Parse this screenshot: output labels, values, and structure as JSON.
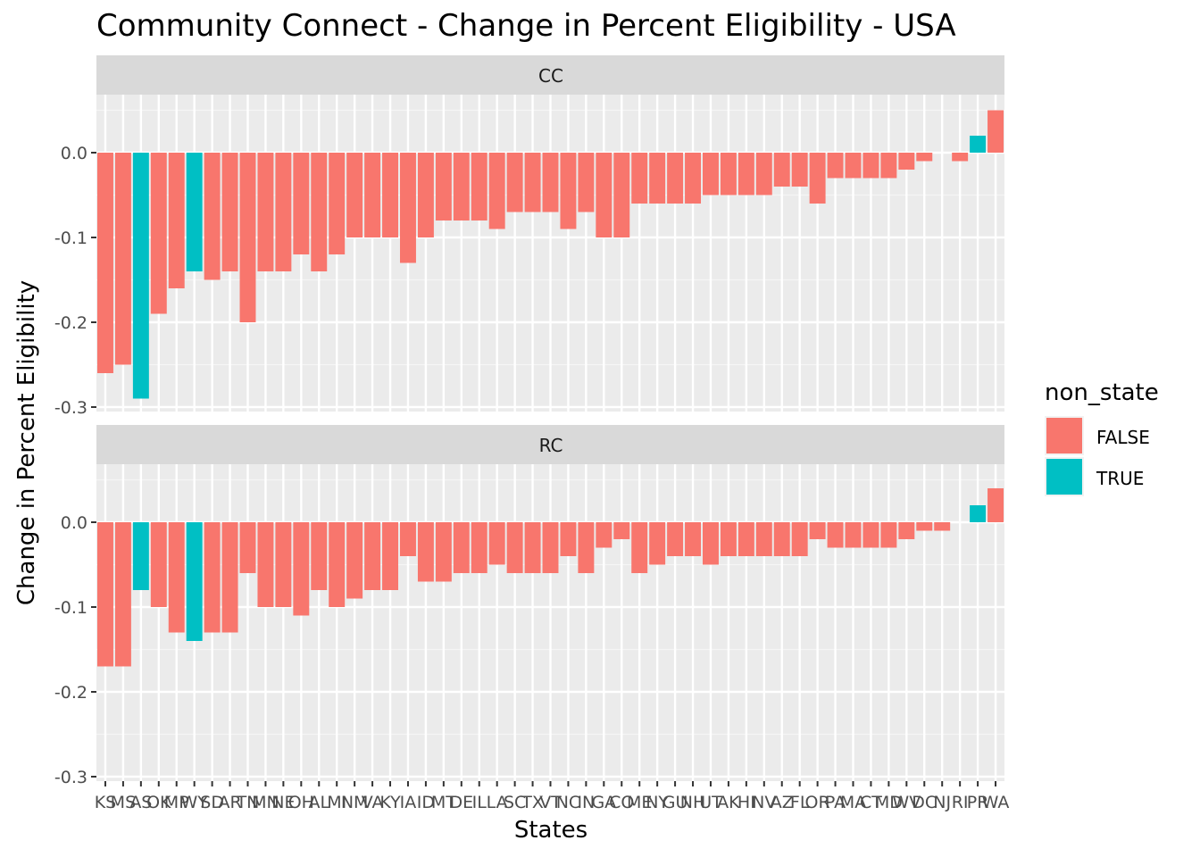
{
  "chart_data": {
    "type": "bar",
    "title": "Community Connect - Change in Percent Eligibility - USA",
    "xlabel": "States",
    "ylabel": "Change in Percent Eligibility",
    "ylim": [
      -0.3,
      0.05
    ],
    "yticks": [
      0.0,
      -0.1,
      -0.2,
      -0.3
    ],
    "ytick_labels": [
      "0.0",
      "-0.1",
      "-0.2",
      "-0.3"
    ],
    "grid": true,
    "legend": {
      "title": "non_state",
      "placement": "right",
      "entries": [
        {
          "label": "FALSE",
          "color": "#F8766D"
        },
        {
          "label": "TRUE",
          "color": "#00BFC4"
        }
      ]
    },
    "categories": [
      "KS",
      "MS",
      "AS",
      "OK",
      "MP",
      "WY",
      "SD",
      "AR",
      "TN",
      "MN",
      "NE",
      "OH",
      "AL",
      "MI",
      "NM",
      "VA",
      "KY",
      "IA",
      "ID",
      "MT",
      "DE",
      "IL",
      "LA",
      "SC",
      "TX",
      "VT",
      "NC",
      "IN",
      "GA",
      "CO",
      "ME",
      "NY",
      "GU",
      "NH",
      "UT",
      "AK",
      "HI",
      "NV",
      "AZ",
      "FL",
      "OR",
      "PA",
      "MA",
      "CT",
      "MD",
      "WV",
      "DC",
      "NJ",
      "RI",
      "PR",
      "WA"
    ],
    "non_state": [
      false,
      false,
      true,
      false,
      false,
      true,
      false,
      false,
      false,
      false,
      false,
      false,
      false,
      false,
      false,
      false,
      false,
      false,
      false,
      false,
      false,
      false,
      false,
      false,
      false,
      false,
      false,
      false,
      false,
      false,
      false,
      false,
      false,
      false,
      false,
      false,
      false,
      false,
      false,
      false,
      false,
      false,
      false,
      false,
      false,
      false,
      false,
      false,
      false,
      true,
      false
    ],
    "series": [
      {
        "name": "CC",
        "values": [
          -0.26,
          -0.25,
          -0.29,
          -0.19,
          -0.16,
          -0.14,
          -0.15,
          -0.14,
          -0.2,
          -0.14,
          -0.14,
          -0.12,
          -0.14,
          -0.12,
          -0.1,
          -0.1,
          -0.1,
          -0.13,
          -0.1,
          -0.08,
          -0.08,
          -0.08,
          -0.09,
          -0.07,
          -0.07,
          -0.07,
          -0.09,
          -0.07,
          -0.1,
          -0.1,
          -0.06,
          -0.06,
          -0.06,
          -0.06,
          -0.05,
          -0.05,
          -0.05,
          -0.05,
          -0.04,
          -0.04,
          -0.06,
          -0.03,
          -0.03,
          -0.03,
          -0.03,
          -0.02,
          -0.01,
          0,
          -0.01,
          0.02,
          0.05
        ]
      },
      {
        "name": "RC",
        "values": [
          -0.17,
          -0.17,
          -0.08,
          -0.1,
          -0.13,
          -0.14,
          -0.13,
          -0.13,
          -0.06,
          -0.1,
          -0.1,
          -0.11,
          -0.08,
          -0.1,
          -0.09,
          -0.08,
          -0.08,
          -0.04,
          -0.07,
          -0.07,
          -0.06,
          -0.06,
          -0.05,
          -0.06,
          -0.06,
          -0.06,
          -0.04,
          -0.06,
          -0.03,
          -0.02,
          -0.06,
          -0.05,
          -0.04,
          -0.04,
          -0.05,
          -0.04,
          -0.04,
          -0.04,
          -0.04,
          -0.04,
          -0.02,
          -0.03,
          -0.03,
          -0.03,
          -0.03,
          -0.02,
          -0.01,
          -0.01,
          0,
          0.02,
          0.04
        ]
      }
    ]
  }
}
